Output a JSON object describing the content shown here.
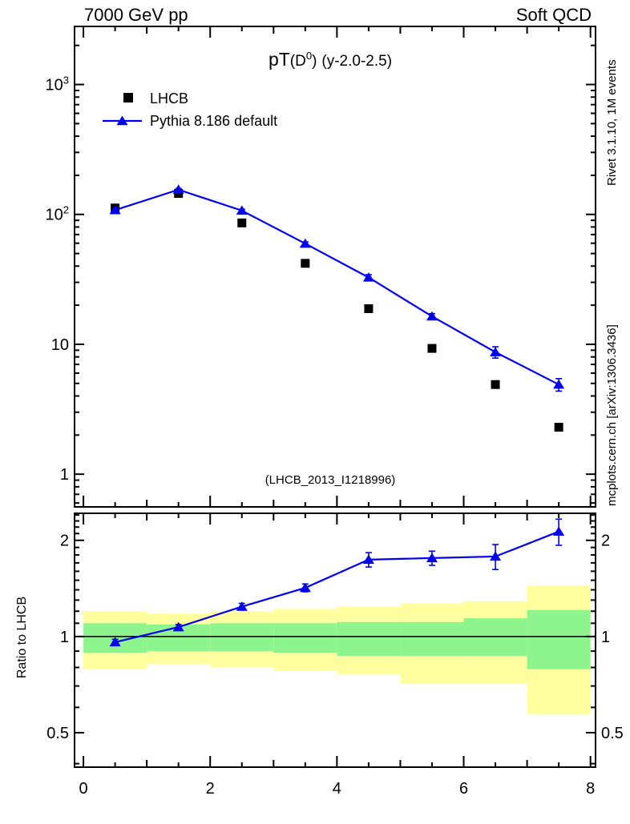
{
  "header": {
    "left": "7000 GeV pp",
    "right": "Soft QCD"
  },
  "title": {
    "pt": "pT",
    "paren_open": "(D",
    "superscript": "0",
    "paren_close": ")",
    "range": "(y-2.0-2.5)",
    "full": "pT(D0) (y-2.0-2.5)"
  },
  "legend": [
    {
      "label": "LHCB",
      "marker": "square",
      "color": "#000000"
    },
    {
      "label": "Pythia 8.186 default",
      "marker": "triangle-line",
      "color": "#0000ff"
    }
  ],
  "watermark": "(LHCB_2013_I1218996)",
  "side_notes": {
    "top": "Rivet 3.1.10,  1M events",
    "bottom": "mcplots.cern.ch [arXiv:1306.3436]"
  },
  "ratio_axis_label": "Ratio to LHCB",
  "colors": {
    "pythia_blue": "#0000ee",
    "data_black": "#000000",
    "band_yellow": "#ffffa0",
    "band_green": "#8ef58e",
    "gray_text": "#8c8c8c",
    "watermark_gray": "#b4b4b4"
  },
  "chart_data": {
    "type": "scatter",
    "title": "pT(D0) (y-2.0-2.5)",
    "xlabel": "",
    "ylabel": "",
    "x": [
      0.5,
      1.5,
      2.5,
      3.5,
      4.5,
      5.5,
      6.5,
      7.5
    ],
    "series": [
      {
        "name": "LHCB",
        "marker": "square",
        "values": [
          112,
          145,
          86,
          42,
          18.8,
          9.3,
          4.9,
          2.3
        ]
      },
      {
        "name": "Pythia 8.186 default",
        "marker": "triangle",
        "values": [
          108,
          155,
          107,
          59.6,
          32.7,
          16.4,
          8.7,
          4.9
        ],
        "yerr_rel": [
          0.02,
          0.02,
          0.025,
          0.03,
          0.05,
          0.05,
          0.1,
          0.11
        ]
      }
    ],
    "ratio": {
      "name": "Ratio to LHCB",
      "values": [
        0.96,
        1.07,
        1.24,
        1.42,
        1.74,
        1.76,
        1.78,
        2.13
      ],
      "err": [
        0.02,
        0.02,
        0.03,
        0.04,
        0.09,
        0.09,
        0.16,
        0.2
      ],
      "bands": {
        "bin_edges": [
          0,
          1,
          2,
          3,
          4,
          5,
          6,
          7,
          8
        ],
        "yellow": [
          [
            0.79,
            1.2
          ],
          [
            0.82,
            1.18
          ],
          [
            0.8,
            1.2
          ],
          [
            0.78,
            1.22
          ],
          [
            0.76,
            1.24
          ],
          [
            0.71,
            1.27
          ],
          [
            0.71,
            1.29
          ],
          [
            0.57,
            1.44
          ]
        ],
        "green": [
          [
            0.89,
            1.1
          ],
          [
            0.9,
            1.09
          ],
          [
            0.9,
            1.1
          ],
          [
            0.89,
            1.1
          ],
          [
            0.87,
            1.11
          ],
          [
            0.87,
            1.11
          ],
          [
            0.87,
            1.14
          ],
          [
            0.79,
            1.21
          ]
        ]
      },
      "reference_line": 1
    },
    "xlim": [
      -0.14,
      8.08
    ],
    "xticks_labeled": [
      0,
      2,
      4,
      6,
      8
    ],
    "xtick_minor_step": 0.5,
    "main_ylog": true,
    "main_ylim": [
      0.56,
      2800
    ],
    "main_ytick_exponents": [
      0,
      1,
      2,
      3
    ],
    "ratio_ylog": true,
    "ratio_ylim": [
      0.39,
      2.43
    ],
    "ratio_yticks": [
      0.5,
      1,
      2
    ],
    "grid": false,
    "legend_position": "upper-left"
  }
}
